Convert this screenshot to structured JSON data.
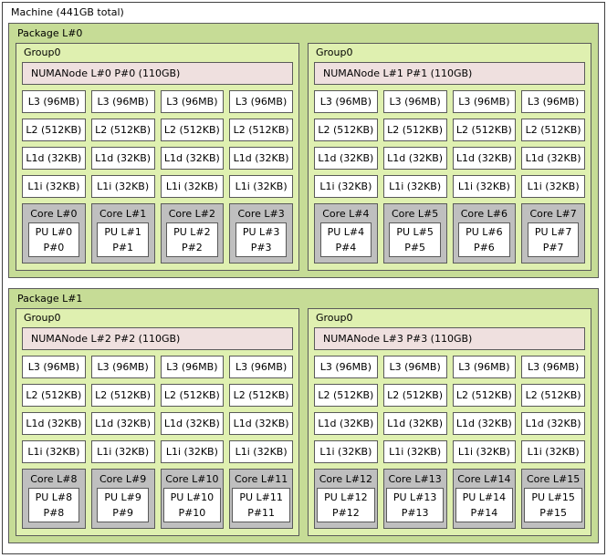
{
  "machine": {
    "label": "Machine (441GB total)"
  },
  "colors": {
    "machine_bg": "#ffffff",
    "package_bg": "#c6dc96",
    "group_bg": "#dff0b0",
    "numanode_bg": "#efe0df",
    "cache_bg": "#ffffff",
    "core_bg": "#bfbfbf",
    "pu_bg": "#ffffff",
    "border": "#5a5a5a"
  },
  "packages": [
    {
      "label": "Package L#0",
      "groups": [
        {
          "label": "Group0",
          "numanode": "NUMANode L#0 P#0 (110GB)",
          "columns": [
            {
              "l3": "L3 (96MB)",
              "l2": "L2 (512KB)",
              "l1d": "L1d (32KB)",
              "l1i": "L1i (32KB)",
              "core": "Core L#0",
              "pu_line1": "PU L#0",
              "pu_line2": "P#0"
            },
            {
              "l3": "L3 (96MB)",
              "l2": "L2 (512KB)",
              "l1d": "L1d (32KB)",
              "l1i": "L1i (32KB)",
              "core": "Core L#1",
              "pu_line1": "PU L#1",
              "pu_line2": "P#1"
            },
            {
              "l3": "L3 (96MB)",
              "l2": "L2 (512KB)",
              "l1d": "L1d (32KB)",
              "l1i": "L1i (32KB)",
              "core": "Core L#2",
              "pu_line1": "PU L#2",
              "pu_line2": "P#2"
            },
            {
              "l3": "L3 (96MB)",
              "l2": "L2 (512KB)",
              "l1d": "L1d (32KB)",
              "l1i": "L1i (32KB)",
              "core": "Core L#3",
              "pu_line1": "PU L#3",
              "pu_line2": "P#3"
            }
          ]
        },
        {
          "label": "Group0",
          "numanode": "NUMANode L#1 P#1 (110GB)",
          "columns": [
            {
              "l3": "L3 (96MB)",
              "l2": "L2 (512KB)",
              "l1d": "L1d (32KB)",
              "l1i": "L1i (32KB)",
              "core": "Core L#4",
              "pu_line1": "PU L#4",
              "pu_line2": "P#4"
            },
            {
              "l3": "L3 (96MB)",
              "l2": "L2 (512KB)",
              "l1d": "L1d (32KB)",
              "l1i": "L1i (32KB)",
              "core": "Core L#5",
              "pu_line1": "PU L#5",
              "pu_line2": "P#5"
            },
            {
              "l3": "L3 (96MB)",
              "l2": "L2 (512KB)",
              "l1d": "L1d (32KB)",
              "l1i": "L1i (32KB)",
              "core": "Core L#6",
              "pu_line1": "PU L#6",
              "pu_line2": "P#6"
            },
            {
              "l3": "L3 (96MB)",
              "l2": "L2 (512KB)",
              "l1d": "L1d (32KB)",
              "l1i": "L1i (32KB)",
              "core": "Core L#7",
              "pu_line1": "PU L#7",
              "pu_line2": "P#7"
            }
          ]
        }
      ]
    },
    {
      "label": "Package L#1",
      "groups": [
        {
          "label": "Group0",
          "numanode": "NUMANode L#2 P#2 (110GB)",
          "columns": [
            {
              "l3": "L3 (96MB)",
              "l2": "L2 (512KB)",
              "l1d": "L1d (32KB)",
              "l1i": "L1i (32KB)",
              "core": "Core L#8",
              "pu_line1": "PU L#8",
              "pu_line2": "P#8"
            },
            {
              "l3": "L3 (96MB)",
              "l2": "L2 (512KB)",
              "l1d": "L1d (32KB)",
              "l1i": "L1i (32KB)",
              "core": "Core L#9",
              "pu_line1": "PU L#9",
              "pu_line2": "P#9"
            },
            {
              "l3": "L3 (96MB)",
              "l2": "L2 (512KB)",
              "l1d": "L1d (32KB)",
              "l1i": "L1i (32KB)",
              "core": "Core L#10",
              "pu_line1": "PU L#10",
              "pu_line2": "P#10"
            },
            {
              "l3": "L3 (96MB)",
              "l2": "L2 (512KB)",
              "l1d": "L1d (32KB)",
              "l1i": "L1i (32KB)",
              "core": "Core L#11",
              "pu_line1": "PU L#11",
              "pu_line2": "P#11"
            }
          ]
        },
        {
          "label": "Group0",
          "numanode": "NUMANode L#3 P#3 (110GB)",
          "columns": [
            {
              "l3": "L3 (96MB)",
              "l2": "L2 (512KB)",
              "l1d": "L1d (32KB)",
              "l1i": "L1i (32KB)",
              "core": "Core L#12",
              "pu_line1": "PU L#12",
              "pu_line2": "P#12"
            },
            {
              "l3": "L3 (96MB)",
              "l2": "L2 (512KB)",
              "l1d": "L1d (32KB)",
              "l1i": "L1i (32KB)",
              "core": "Core L#13",
              "pu_line1": "PU L#13",
              "pu_line2": "P#13"
            },
            {
              "l3": "L3 (96MB)",
              "l2": "L2 (512KB)",
              "l1d": "L1d (32KB)",
              "l1i": "L1i (32KB)",
              "core": "Core L#14",
              "pu_line1": "PU L#14",
              "pu_line2": "P#14"
            },
            {
              "l3": "L3 (96MB)",
              "l2": "L2 (512KB)",
              "l1d": "L1d (32KB)",
              "l1i": "L1i (32KB)",
              "core": "Core L#15",
              "pu_line1": "PU L#15",
              "pu_line2": "P#15"
            }
          ]
        }
      ]
    }
  ]
}
